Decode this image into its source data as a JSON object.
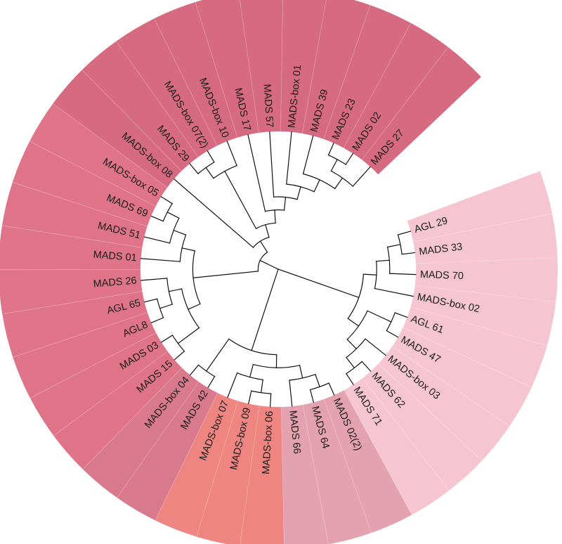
{
  "tree": {
    "layout": "circular",
    "start_angle_deg": -16,
    "end_angle_deg": 312,
    "leaves": [
      {
        "label": "AGL 29",
        "color": "#f5c6d2"
      },
      {
        "label": "MADS 33",
        "color": "#f5c6d2"
      },
      {
        "label": "MADS 70",
        "color": "#f5c6d2"
      },
      {
        "label": "MADS-box 02",
        "color": "#f5c6d2"
      },
      {
        "label": "AGL 61",
        "color": "#f5c6d2"
      },
      {
        "label": "MADS 47",
        "color": "#f5c6d2"
      },
      {
        "label": "MADS-box 03",
        "color": "#f5c6d2"
      },
      {
        "label": "MADS 62",
        "color": "#f5c6d2"
      },
      {
        "label": "MADS 71",
        "color": "#f5c6d2"
      },
      {
        "label": "MADS 02(2)",
        "color": "#e4a2b0"
      },
      {
        "label": "MADS 64",
        "color": "#e4a2b0"
      },
      {
        "label": "MADS 66",
        "color": "#e4a2b0"
      },
      {
        "label": "MADS-box 06",
        "color": "#ef8580"
      },
      {
        "label": "MADS-box 09",
        "color": "#ef8580"
      },
      {
        "label": "MADS-box 07",
        "color": "#ef8580"
      },
      {
        "label": "MADS 42",
        "color": "#d9798e"
      },
      {
        "label": "MADS-box 04",
        "color": "#d9798e"
      },
      {
        "label": "MADS 15",
        "color": "#df7488"
      },
      {
        "label": "MADS 03",
        "color": "#df7488"
      },
      {
        "label": "AGL8",
        "color": "#df7488"
      },
      {
        "label": "AGL 65",
        "color": "#df7488"
      },
      {
        "label": "MADS 26",
        "color": "#df7488"
      },
      {
        "label": "MADS 01",
        "color": "#df7488"
      },
      {
        "label": "MADS 51",
        "color": "#df7488"
      },
      {
        "label": "MADS 69",
        "color": "#df7488"
      },
      {
        "label": "MADS-box 05",
        "color": "#df7488"
      },
      {
        "label": "MADS-box 08",
        "color": "#d66a81"
      },
      {
        "label": "MADS 29",
        "color": "#d66a81"
      },
      {
        "label": "MADS-box 07(2)",
        "color": "#d66a81"
      },
      {
        "label": "MADS-box 10",
        "color": "#d66a81"
      },
      {
        "label": "MADS 17",
        "color": "#d66a81"
      },
      {
        "label": "MADS 57",
        "color": "#d66a81"
      },
      {
        "label": "MADS-box 01",
        "color": "#d66a81"
      },
      {
        "label": "MADS 39",
        "color": "#d66a81"
      },
      {
        "label": "MADS 23",
        "color": "#d66a81"
      },
      {
        "label": "MADS 02",
        "color": "#d66a81"
      },
      {
        "label": "MADS 27",
        "color": "#d66a81"
      }
    ],
    "topology": [
      [
        [
          [
            [
              0,
              1
            ],
            2
          ],
          3
        ],
        [
          [
            4,
            5
          ],
          [
            6,
            [
              7,
              8
            ]
          ]
        ]
      ],
      [
        [
          [
            [
              9,
              10
            ],
            11
          ],
          [
            [
              12,
              13
            ],
            14
          ]
        ],
        [
          15,
          16
        ]
      ],
      [
        [
          [
            [
              17,
              18
            ],
            [
              [
                19,
                20
              ],
              21
            ]
          ],
          [
            22,
            [
              23,
              [
                24,
                25
              ]
            ]
          ]
        ],
        [
          26,
          [
            [
              [
                27,
                28
              ],
              29
            ],
            [
              30,
              [
                31,
                [
                  32,
                  [
                    33,
                    [
                      [
                        34,
                        35
                      ],
                      36
                    ]
                  ]
                ]
              ]
            ]
          ]
        ]
      ]
    ]
  }
}
